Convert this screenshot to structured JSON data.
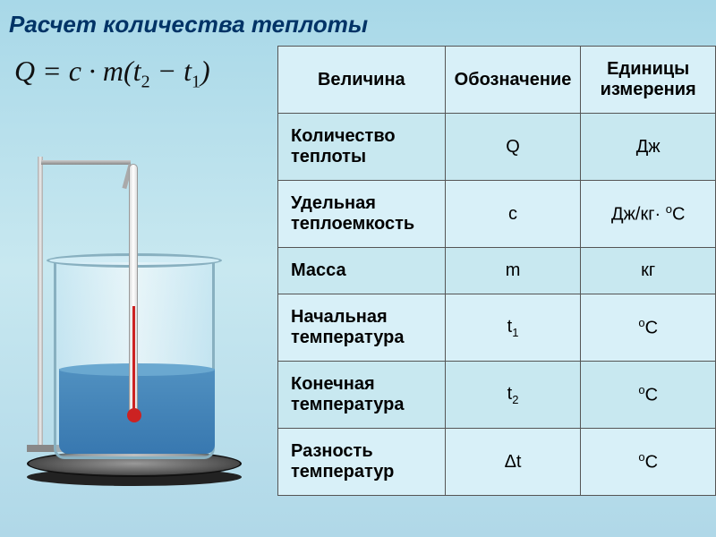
{
  "title": "Расчет количества теплоты",
  "formula": {
    "Q": "Q",
    "eq": " = ",
    "c": "c",
    "dot": " · ",
    "m": "m",
    "open": "(",
    "t": "t",
    "s2": "2",
    "minus": " − ",
    "s1": "1",
    "close": ")"
  },
  "table": {
    "headers": {
      "quantity": "Величина",
      "symbol": "Обозначение",
      "units": "Единицы измерения"
    },
    "rows": [
      {
        "label": "Количество теплоты",
        "symbol": "Q",
        "unit": "Дж"
      },
      {
        "label": "Удельная теплоемкость",
        "symbol": "c",
        "unit_prefix": "Дж/кг· ",
        "unit_sup": "о",
        "unit_suffix": "С"
      },
      {
        "label": "Масса",
        "symbol": "m",
        "unit": "кг"
      },
      {
        "label": "Начальная температура",
        "symbol_base": "t",
        "symbol_sub": "1",
        "unit_sup": "о",
        "unit_suffix": "С"
      },
      {
        "label": "Конечная температура",
        "symbol_base": "t",
        "symbol_sub": "2",
        "unit_sup": "о",
        "unit_suffix": "С"
      },
      {
        "label": "Разность температур",
        "symbol": "Δt",
        "unit_sup": "о",
        "unit_suffix": "С"
      }
    ]
  },
  "colors": {
    "title": "#003366",
    "bg_top": "#a8d8e8",
    "bg_mid": "#c8e8f0",
    "border": "#555555",
    "row_odd": "#c8e8f0",
    "row_even": "#d8f0f8",
    "water": "#3878b0",
    "mercury": "#cc2222"
  }
}
